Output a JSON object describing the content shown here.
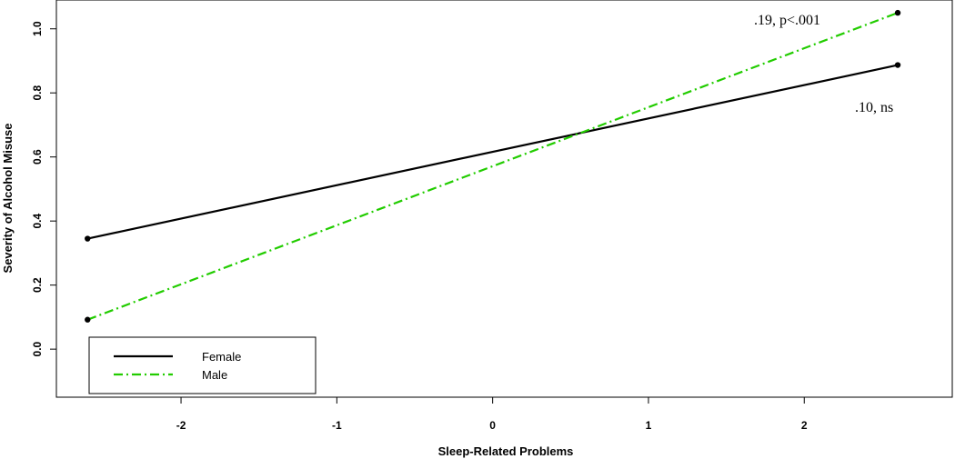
{
  "chart_data": {
    "type": "line",
    "title": "",
    "xlabel": "Sleep-Related Problems",
    "ylabel": "Severity of Alcohol Misuse",
    "xlim": [
      -2.8,
      2.95
    ],
    "ylim": [
      -0.15,
      1.09
    ],
    "xticks": [
      -2,
      -1,
      0,
      1,
      2
    ],
    "yticks": [
      0.0,
      0.2,
      0.4,
      0.6,
      0.8,
      1.0
    ],
    "xtick_labels": [
      "-2",
      "-1",
      "0",
      "1",
      "2"
    ],
    "ytick_labels": [
      "0.0",
      "0.2",
      "0.4",
      "0.6",
      "0.8",
      "1.0"
    ],
    "grid": false,
    "legend_position": "bottom-left",
    "series": [
      {
        "name": "Female",
        "color": "#000000",
        "dash": "solid",
        "x": [
          -2.6,
          2.6
        ],
        "y": [
          0.345,
          0.887
        ],
        "annotation": ".10, ns"
      },
      {
        "name": "Male",
        "color": "#22cc00",
        "dash": "dashdot",
        "x": [
          -2.6,
          2.6
        ],
        "y": [
          0.092,
          1.05
        ],
        "annotation": ".19, p<.001"
      }
    ]
  }
}
